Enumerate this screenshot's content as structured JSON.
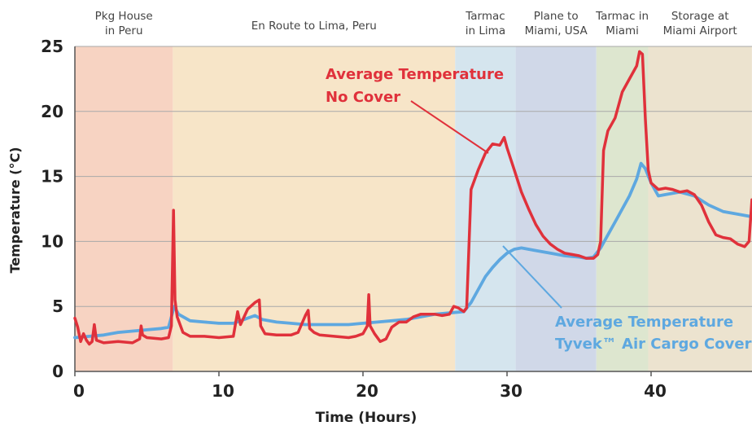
{
  "chart_data": {
    "type": "line",
    "xlabel": "Time (Hours)",
    "ylabel": "Temperature (°C)",
    "xlim": [
      0,
      47
    ],
    "ylim": [
      0,
      25
    ],
    "x_ticks": [
      0,
      10,
      20,
      30,
      40
    ],
    "y_ticks": [
      0,
      5,
      10,
      15,
      20,
      25
    ],
    "grid": "horizontal",
    "phases": [
      {
        "label": [
          "Pkg House",
          "in Peru"
        ],
        "start": 0,
        "end": 6.8,
        "color": "#f7d3c2"
      },
      {
        "label": [
          "En Route to Lima, Peru"
        ],
        "start": 6.8,
        "end": 26.4,
        "color": "#f7e5c8"
      },
      {
        "label": [
          "Tarmac",
          "in Lima"
        ],
        "start": 26.4,
        "end": 30.6,
        "color": "#d5e5ee"
      },
      {
        "label": [
          "Plane to",
          "Miami, USA"
        ],
        "start": 30.6,
        "end": 36.2,
        "color": "#d0d8e8"
      },
      {
        "label": [
          "Tarmac in",
          "Miami"
        ],
        "start": 36.2,
        "end": 39.8,
        "color": "#dde6cf"
      },
      {
        "label": [
          "Storage at",
          "Miami Airport"
        ],
        "start": 39.8,
        "end": 47,
        "color": "#ece3cf"
      }
    ],
    "series": [
      {
        "name": "Average Temperature No Cover",
        "label_lines": [
          "Average Temperature",
          "No Cover"
        ],
        "color": "#e0313b",
        "points": [
          [
            0,
            4.1
          ],
          [
            0.2,
            3.4
          ],
          [
            0.4,
            2.3
          ],
          [
            0.6,
            2.9
          ],
          [
            0.8,
            2.4
          ],
          [
            1.0,
            2.1
          ],
          [
            1.2,
            2.3
          ],
          [
            1.35,
            3.6
          ],
          [
            1.5,
            2.4
          ],
          [
            2,
            2.2
          ],
          [
            3,
            2.3
          ],
          [
            4,
            2.2
          ],
          [
            4.5,
            2.5
          ],
          [
            4.6,
            3.5
          ],
          [
            4.7,
            2.8
          ],
          [
            5,
            2.6
          ],
          [
            6,
            2.5
          ],
          [
            6.5,
            2.6
          ],
          [
            6.7,
            3.5
          ],
          [
            6.85,
            12.4
          ],
          [
            6.95,
            5.5
          ],
          [
            7.1,
            4.2
          ],
          [
            7.5,
            3.0
          ],
          [
            8,
            2.7
          ],
          [
            9,
            2.7
          ],
          [
            10,
            2.6
          ],
          [
            11,
            2.7
          ],
          [
            11.3,
            4.6
          ],
          [
            11.5,
            3.6
          ],
          [
            12,
            4.8
          ],
          [
            12.5,
            5.3
          ],
          [
            12.8,
            5.5
          ],
          [
            12.9,
            3.5
          ],
          [
            13.2,
            2.9
          ],
          [
            14,
            2.8
          ],
          [
            15,
            2.8
          ],
          [
            15.5,
            3.0
          ],
          [
            16,
            4.3
          ],
          [
            16.2,
            4.7
          ],
          [
            16.3,
            3.3
          ],
          [
            16.6,
            3.0
          ],
          [
            17,
            2.8
          ],
          [
            18,
            2.7
          ],
          [
            19,
            2.6
          ],
          [
            19.5,
            2.7
          ],
          [
            20,
            2.9
          ],
          [
            20.3,
            3.5
          ],
          [
            20.4,
            5.9
          ],
          [
            20.5,
            3.5
          ],
          [
            20.8,
            2.9
          ],
          [
            21.2,
            2.3
          ],
          [
            21.6,
            2.5
          ],
          [
            22,
            3.4
          ],
          [
            22.5,
            3.8
          ],
          [
            23,
            3.8
          ],
          [
            23.5,
            4.2
          ],
          [
            24,
            4.4
          ],
          [
            24.5,
            4.4
          ],
          [
            25,
            4.4
          ],
          [
            25.5,
            4.3
          ],
          [
            26,
            4.4
          ],
          [
            26.3,
            5.0
          ],
          [
            26.6,
            4.9
          ],
          [
            27,
            4.6
          ],
          [
            27.2,
            4.9
          ],
          [
            27.5,
            14.0
          ],
          [
            28,
            15.5
          ],
          [
            28.5,
            16.8
          ],
          [
            29,
            17.5
          ],
          [
            29.5,
            17.4
          ],
          [
            29.8,
            18.0
          ],
          [
            30,
            17.2
          ],
          [
            30.5,
            15.5
          ],
          [
            31,
            13.8
          ],
          [
            31.5,
            12.5
          ],
          [
            32,
            11.3
          ],
          [
            32.5,
            10.4
          ],
          [
            33,
            9.8
          ],
          [
            33.5,
            9.4
          ],
          [
            34,
            9.1
          ],
          [
            34.5,
            9.0
          ],
          [
            35,
            8.9
          ],
          [
            35.5,
            8.7
          ],
          [
            36,
            8.7
          ],
          [
            36.3,
            9.0
          ],
          [
            36.5,
            10.0
          ],
          [
            36.7,
            17.0
          ],
          [
            37,
            18.5
          ],
          [
            37.5,
            19.5
          ],
          [
            38,
            21.5
          ],
          [
            38.5,
            22.5
          ],
          [
            39,
            23.5
          ],
          [
            39.2,
            24.6
          ],
          [
            39.4,
            24.4
          ],
          [
            39.6,
            19.5
          ],
          [
            39.8,
            15.5
          ],
          [
            40,
            14.5
          ],
          [
            40.5,
            14.0
          ],
          [
            41,
            14.1
          ],
          [
            41.5,
            14.0
          ],
          [
            42,
            13.8
          ],
          [
            42.5,
            13.9
          ],
          [
            43,
            13.6
          ],
          [
            43.5,
            12.8
          ],
          [
            44,
            11.5
          ],
          [
            44.5,
            10.5
          ],
          [
            45,
            10.3
          ],
          [
            45.5,
            10.2
          ],
          [
            46,
            9.8
          ],
          [
            46.5,
            9.6
          ],
          [
            46.8,
            10.0
          ],
          [
            47,
            13.2
          ]
        ]
      },
      {
        "name": "Average Temperature Tyvek™ Air Cargo Cover",
        "label_lines": [
          "Average Temperature",
          "Tyvek™ Air Cargo Cover"
        ],
        "color": "#5ea8e0",
        "points": [
          [
            0,
            2.6
          ],
          [
            1,
            2.7
          ],
          [
            2,
            2.8
          ],
          [
            3,
            3.0
          ],
          [
            4,
            3.1
          ],
          [
            5,
            3.2
          ],
          [
            6,
            3.3
          ],
          [
            6.5,
            3.4
          ],
          [
            6.9,
            5.0
          ],
          [
            7.2,
            4.4
          ],
          [
            8,
            3.9
          ],
          [
            9,
            3.8
          ],
          [
            10,
            3.7
          ],
          [
            11,
            3.7
          ],
          [
            11.5,
            3.9
          ],
          [
            12,
            4.1
          ],
          [
            12.5,
            4.3
          ],
          [
            13,
            4.0
          ],
          [
            14,
            3.8
          ],
          [
            15,
            3.7
          ],
          [
            16,
            3.6
          ],
          [
            17,
            3.6
          ],
          [
            18,
            3.6
          ],
          [
            19,
            3.6
          ],
          [
            20,
            3.7
          ],
          [
            21,
            3.8
          ],
          [
            22,
            3.9
          ],
          [
            23,
            4.0
          ],
          [
            24,
            4.2
          ],
          [
            25,
            4.4
          ],
          [
            26,
            4.5
          ],
          [
            27,
            4.6
          ],
          [
            27.5,
            5.3
          ],
          [
            28,
            6.3
          ],
          [
            28.5,
            7.3
          ],
          [
            29,
            8.0
          ],
          [
            29.5,
            8.6
          ],
          [
            30,
            9.1
          ],
          [
            30.5,
            9.4
          ],
          [
            31,
            9.5
          ],
          [
            31.5,
            9.4
          ],
          [
            32,
            9.3
          ],
          [
            33,
            9.1
          ],
          [
            34,
            8.9
          ],
          [
            35,
            8.8
          ],
          [
            35.5,
            8.7
          ],
          [
            36,
            8.8
          ],
          [
            36.5,
            9.5
          ],
          [
            37,
            10.5
          ],
          [
            37.5,
            11.5
          ],
          [
            38,
            12.5
          ],
          [
            38.5,
            13.5
          ],
          [
            39,
            14.8
          ],
          [
            39.3,
            16.0
          ],
          [
            39.6,
            15.6
          ],
          [
            40,
            14.5
          ],
          [
            40.5,
            13.5
          ],
          [
            41,
            13.6
          ],
          [
            42,
            13.8
          ],
          [
            43,
            13.5
          ],
          [
            44,
            12.8
          ],
          [
            45,
            12.3
          ],
          [
            46,
            12.1
          ],
          [
            47,
            11.9
          ]
        ]
      }
    ]
  }
}
